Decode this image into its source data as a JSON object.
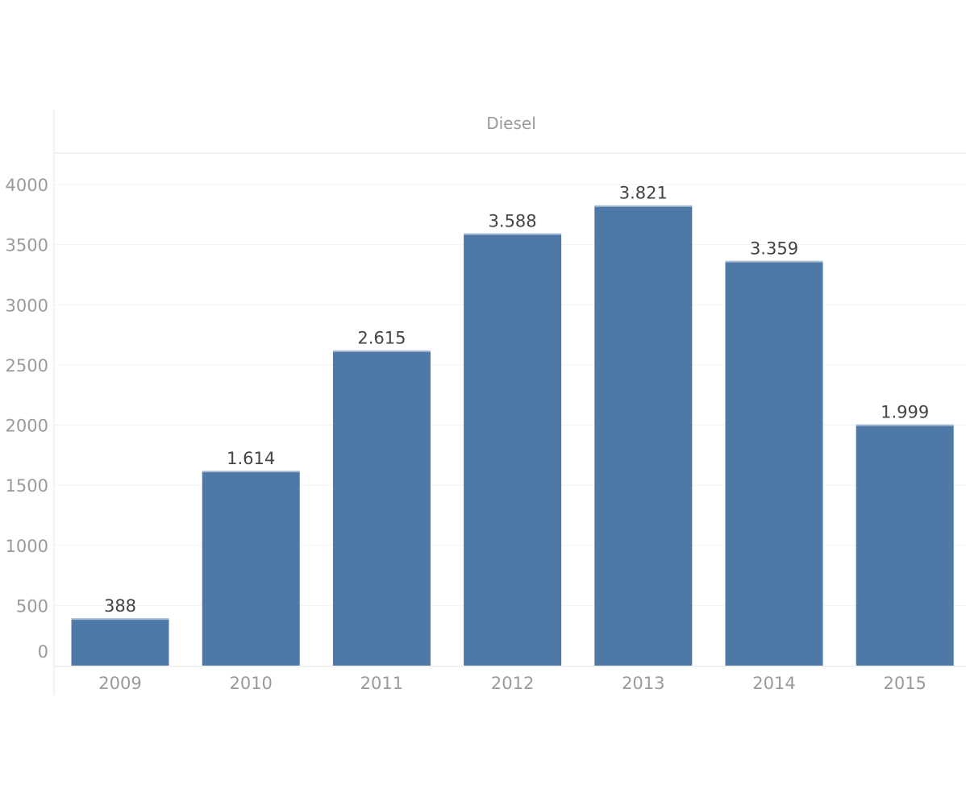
{
  "chart_data": {
    "type": "bar",
    "title": "",
    "panel_header": "Diesel",
    "xlabel": "",
    "ylabel": "",
    "categories": [
      "2009",
      "2010",
      "2011",
      "2012",
      "2013",
      "2014",
      "2015"
    ],
    "values": [
      388,
      1614,
      2615,
      3588,
      3821,
      3359,
      1999
    ],
    "value_labels": [
      "388",
      "1.614",
      "2.615",
      "3.588",
      "3.821",
      "3.359",
      "1.999"
    ],
    "yticks": [
      0,
      500,
      1000,
      1500,
      2000,
      2500,
      3000,
      3500,
      4000
    ],
    "ylim": [
      0,
      4000
    ],
    "grid": true,
    "legend": "none",
    "colors": {
      "bar": "#4e79a7",
      "bar_top": "#a9bdd4"
    }
  }
}
